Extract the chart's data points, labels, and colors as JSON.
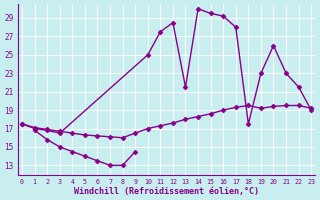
{
  "xlabel": "Windchill (Refroidissement éolien,°C)",
  "bg_color": "#c8eef0",
  "line_color": "#880088",
  "markersize": 2.5,
  "linewidth": 1.0,
  "xlim": [
    -0.3,
    23.3
  ],
  "ylim": [
    12.0,
    30.5
  ],
  "yticks": [
    13,
    15,
    17,
    19,
    21,
    23,
    25,
    27,
    29
  ],
  "xticks": [
    0,
    1,
    2,
    3,
    4,
    5,
    6,
    7,
    8,
    9,
    10,
    11,
    12,
    13,
    14,
    15,
    16,
    17,
    18,
    19,
    20,
    21,
    22,
    23
  ],
  "curve_top_x": [
    0,
    1,
    2,
    3,
    10,
    11,
    12,
    13,
    14,
    15,
    16,
    17,
    18,
    19,
    20,
    21,
    22,
    23
  ],
  "curve_top_y": [
    17.5,
    17.0,
    16.8,
    16.5,
    25.0,
    27.5,
    28.5,
    21.5,
    30.0,
    29.5,
    29.2,
    28.0,
    17.5,
    23.0,
    26.0,
    23.0,
    21.5,
    19.0
  ],
  "curve_mid_x": [
    0,
    1,
    2,
    3,
    4,
    5,
    6,
    7,
    8,
    9,
    10,
    11,
    12,
    13,
    14,
    15,
    16,
    17,
    18,
    19,
    20,
    21,
    22,
    23
  ],
  "curve_mid_y": [
    17.5,
    17.1,
    16.9,
    16.7,
    16.5,
    16.3,
    16.2,
    16.1,
    16.0,
    16.5,
    17.0,
    17.3,
    17.6,
    18.0,
    18.3,
    18.6,
    19.0,
    19.3,
    19.5,
    19.2,
    19.4,
    19.5,
    19.5,
    19.2
  ],
  "curve_bot_x": [
    1,
    2,
    3,
    4,
    5,
    6,
    7,
    8,
    9
  ],
  "curve_bot_y": [
    16.8,
    15.8,
    15.0,
    14.5,
    14.0,
    13.5,
    13.0,
    13.0,
    14.5
  ]
}
